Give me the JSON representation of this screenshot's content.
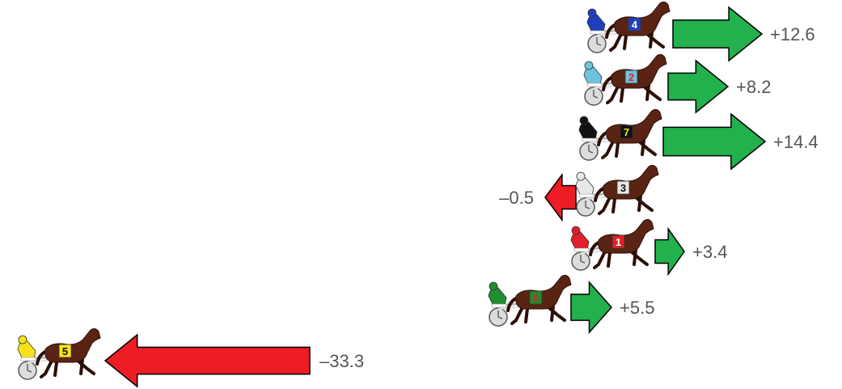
{
  "colors": {
    "gain": "#22b14c",
    "loss": "#ee1c24",
    "outline": "#000000",
    "label": "#555555",
    "horse": "#5a2414",
    "horse_dark": "#2b0f08"
  },
  "icon": "harness-racer-icon",
  "entries": [
    {
      "number": "4",
      "change": "+12.6",
      "value": 12.6,
      "silk": "#1f3fbf",
      "numColor": "#ffffff"
    },
    {
      "number": "2",
      "change": "+8.2",
      "value": 8.2,
      "silk": "#6fc3df",
      "numColor": "#e0202a"
    },
    {
      "number": "7",
      "change": "+14.4",
      "value": 14.4,
      "silk": "#111111",
      "numColor": "#f5e61a"
    },
    {
      "number": "3",
      "change": "–0.5",
      "value": -0.5,
      "silk": "#e8e8e8",
      "numColor": "#111111"
    },
    {
      "number": "1",
      "change": "+3.4",
      "value": 3.4,
      "silk": "#e0202a",
      "numColor": "#ffffff"
    },
    {
      "number": "6",
      "change": "+5.5",
      "value": 5.5,
      "silk": "#1e8f2e",
      "numColor": "#e0202a"
    },
    {
      "number": "5",
      "change": "–33.3",
      "value": -33.3,
      "silk": "#f5e21a",
      "numColor": "#111111"
    }
  ]
}
